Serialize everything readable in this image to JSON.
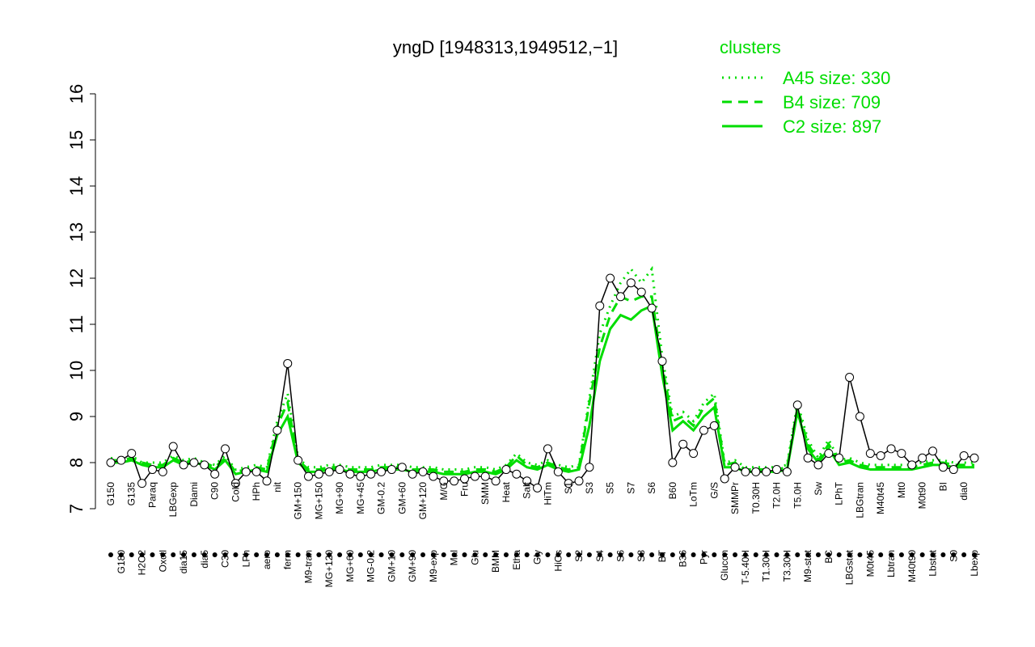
{
  "chart_data": {
    "type": "line",
    "title": "yngD [1948313,1949512,−1]",
    "legend_title": "clusters",
    "legend_position": "top-right",
    "ylim": [
      7,
      16
    ],
    "yticks": [
      7,
      8,
      9,
      10,
      11,
      12,
      13,
      14,
      15,
      16
    ],
    "categories": [
      "G150",
      "G180",
      "G135",
      "H2O2",
      "Paraq",
      "Oxctl",
      "LBGexp",
      "dia15",
      "Diami",
      "dia5",
      "C90",
      "C30",
      "Cold",
      "LPh",
      "HPh",
      "aero",
      "nit",
      "ferm",
      "GM+150",
      "M9-tran",
      "MG+150",
      "MG+120",
      "MG+90",
      "MG+60",
      "MG+45",
      "MG-0.2",
      "GM-0.2",
      "GM+10",
      "GM+60",
      "GM+90",
      "GM+120",
      "M9-exp",
      "M/G",
      "Mal",
      "Fru",
      "Glu",
      "SMM",
      "BMM",
      "Heat",
      "Etha",
      "Salt",
      "Gly",
      "HiTm",
      "HiOs",
      "S1",
      "S2",
      "S3",
      "S4",
      "S5",
      "S6",
      "S7",
      "S8",
      "S6",
      "BT",
      "B60",
      "B36",
      "LoTm",
      "Pyr",
      "G/S",
      "Glucon",
      "SMMPr",
      "T-5.40H",
      "T0.30H",
      "T1.30H",
      "T2.0H",
      "T3.30H",
      "T5.0H",
      "M9-stat",
      "Sw",
      "BC",
      "LPhT",
      "LBGstat",
      "LBGtran",
      "M0t45",
      "M40t45",
      "Lbtran",
      "Mt0",
      "M40t90",
      "M0t90",
      "Lbstat",
      "BI",
      "S0",
      "dia0",
      "Lbexp"
    ],
    "values": [
      8.0,
      8.05,
      8.2,
      7.55,
      7.85,
      7.8,
      8.35,
      7.95,
      8.0,
      7.95,
      7.75,
      8.3,
      7.55,
      7.8,
      7.8,
      7.6,
      8.7,
      10.15,
      8.05,
      7.7,
      7.75,
      7.8,
      7.85,
      7.75,
      7.7,
      7.75,
      7.8,
      7.85,
      7.9,
      7.75,
      7.8,
      7.7,
      7.6,
      7.6,
      7.65,
      7.7,
      7.7,
      7.6,
      7.85,
      7.75,
      7.6,
      7.45,
      8.3,
      7.8,
      7.55,
      7.6,
      7.9,
      11.4,
      12.0,
      11.6,
      11.9,
      11.7,
      11.35,
      10.2,
      8.0,
      8.4,
      8.2,
      8.7,
      8.8,
      7.65,
      7.9,
      7.8,
      7.8,
      7.8,
      7.85,
      7.8,
      9.25,
      8.1,
      7.95,
      8.2,
      8.1,
      9.85,
      9.0,
      8.2,
      8.15,
      8.3,
      8.2,
      7.95,
      8.1,
      8.25,
      7.9,
      7.85,
      8.15,
      8.1
    ],
    "color": "#000000",
    "series": [
      {
        "name": "A45 size: 330",
        "color": "#00dd00",
        "style": "dotted",
        "values": [
          8.1,
          8.05,
          8.15,
          8.0,
          8.0,
          8.0,
          8.15,
          8.05,
          8.1,
          8.0,
          7.95,
          8.15,
          7.85,
          7.9,
          7.95,
          7.9,
          8.9,
          9.5,
          8.1,
          7.9,
          7.9,
          7.95,
          7.95,
          7.9,
          7.9,
          7.9,
          7.95,
          7.95,
          7.95,
          7.9,
          7.9,
          7.9,
          7.85,
          7.85,
          7.85,
          7.9,
          7.9,
          7.85,
          7.95,
          8.2,
          8.0,
          7.95,
          8.05,
          7.95,
          7.9,
          7.95,
          9.4,
          10.8,
          11.4,
          11.9,
          12.2,
          11.9,
          12.2,
          10.3,
          9.0,
          9.1,
          8.9,
          9.3,
          9.5,
          8.0,
          8.05,
          7.9,
          7.9,
          7.9,
          7.9,
          7.95,
          9.3,
          8.5,
          8.1,
          8.5,
          8.05,
          8.1,
          8.0,
          7.95,
          7.95,
          7.95,
          7.95,
          7.95,
          8.0,
          8.05,
          8.05,
          8.0,
          8.0,
          8.0
        ]
      },
      {
        "name": "B4 size: 709",
        "color": "#00dd00",
        "style": "dashed",
        "values": [
          8.05,
          8.05,
          8.1,
          8.0,
          7.95,
          7.95,
          8.1,
          8.0,
          8.05,
          8.0,
          7.9,
          8.1,
          7.8,
          7.85,
          7.9,
          7.85,
          8.8,
          9.3,
          8.05,
          7.85,
          7.85,
          7.9,
          7.9,
          7.85,
          7.85,
          7.85,
          7.9,
          7.9,
          7.9,
          7.85,
          7.85,
          7.85,
          7.8,
          7.8,
          7.8,
          7.85,
          7.85,
          7.8,
          7.9,
          8.15,
          7.95,
          7.9,
          8.0,
          7.9,
          7.85,
          7.9,
          9.3,
          10.5,
          11.2,
          11.6,
          11.5,
          11.6,
          11.6,
          10.1,
          8.9,
          9.0,
          8.8,
          9.2,
          9.4,
          7.95,
          8.0,
          7.85,
          7.85,
          7.85,
          7.85,
          7.9,
          9.2,
          8.4,
          8.05,
          8.4,
          8.0,
          8.05,
          7.95,
          7.9,
          7.9,
          7.9,
          7.9,
          7.9,
          7.95,
          8.0,
          8.0,
          7.95,
          7.95,
          7.95
        ]
      },
      {
        "name": "C2 size: 897",
        "color": "#00dd00",
        "style": "solid",
        "values": [
          8.0,
          8.0,
          8.05,
          7.95,
          7.9,
          7.9,
          8.05,
          7.95,
          8.0,
          7.95,
          7.85,
          8.05,
          7.75,
          7.8,
          7.85,
          7.8,
          8.6,
          9.0,
          8.0,
          7.8,
          7.8,
          7.85,
          7.85,
          7.8,
          7.8,
          7.8,
          7.85,
          7.85,
          7.85,
          7.8,
          7.8,
          7.8,
          7.75,
          7.75,
          7.75,
          7.8,
          7.8,
          7.75,
          7.85,
          8.05,
          7.9,
          7.85,
          7.95,
          7.85,
          7.8,
          7.85,
          8.8,
          10.2,
          10.9,
          11.2,
          11.1,
          11.3,
          11.4,
          9.9,
          8.7,
          8.9,
          8.7,
          9.0,
          9.2,
          7.9,
          7.9,
          7.8,
          7.8,
          7.8,
          7.8,
          7.85,
          9.1,
          8.3,
          8.0,
          8.3,
          7.95,
          8.0,
          7.9,
          7.85,
          7.85,
          7.85,
          7.85,
          7.85,
          7.9,
          7.95,
          7.95,
          7.9,
          7.9,
          7.9
        ]
      }
    ]
  }
}
